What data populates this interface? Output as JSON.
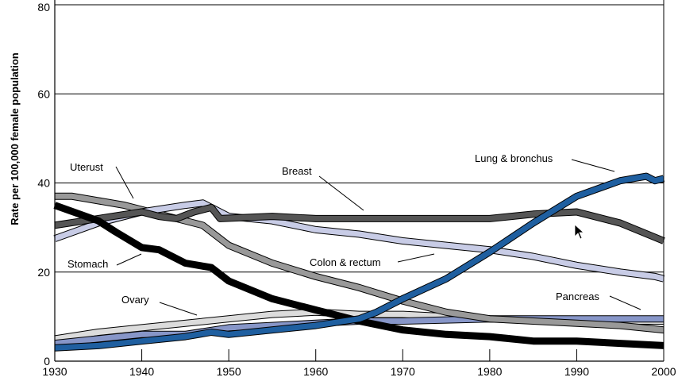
{
  "chart_data": {
    "type": "line",
    "title": "",
    "xlabel": "",
    "ylabel": "Rate per 100,000 female population",
    "xlim": [
      1930,
      2000
    ],
    "ylim": [
      0,
      80
    ],
    "xticks": [
      "1930",
      "1940",
      "1950",
      "1960",
      "1970",
      "1980",
      "1990",
      "2000"
    ],
    "yticks": [
      "0",
      "20",
      "40",
      "60",
      "80"
    ],
    "grid": "horizontal",
    "series": [
      {
        "name": "Ovary",
        "label": "Ovary",
        "color": "#dcdcdc",
        "x": [
          1930,
          1935,
          1940,
          1945,
          1950,
          1955,
          1960,
          1965,
          1970,
          1975,
          1980,
          1990,
          2000
        ],
        "values": [
          5,
          6.5,
          7.5,
          8.5,
          9.5,
          10.5,
          11,
          10.5,
          10.5,
          10,
          9.5,
          9,
          9
        ]
      },
      {
        "name": "Pancreas",
        "label": "Pancreas",
        "color": "#8796c8",
        "x": [
          1930,
          1935,
          1940,
          1945,
          1950,
          1955,
          1960,
          1965,
          1970,
          1980,
          1990,
          2000
        ],
        "values": [
          4,
          5,
          6,
          6,
          7.5,
          8,
          8.5,
          9,
          9,
          9.5,
          9.5,
          9.5
        ]
      },
      {
        "name": "Uterus",
        "label": "Uterust",
        "color": "#999999",
        "x": [
          1930,
          1932,
          1935,
          1938,
          1940,
          1945,
          1947,
          1950,
          1955,
          1960,
          1965,
          1970,
          1975,
          1980,
          1985,
          1990,
          1995,
          2000
        ],
        "values": [
          37,
          37,
          36,
          35,
          34,
          31.5,
          30.5,
          26,
          22,
          19,
          16.5,
          13.5,
          11,
          9.5,
          9,
          8.5,
          8,
          7
        ]
      },
      {
        "name": "Colon & rectum",
        "label": "Colon & rectum",
        "color": "#c8cce6",
        "x": [
          1930,
          1935,
          1940,
          1945,
          1947,
          1950,
          1955,
          1960,
          1965,
          1970,
          1975,
          1980,
          1985,
          1990,
          1995,
          1999,
          2000
        ],
        "values": [
          27.5,
          31,
          33.5,
          35,
          35.5,
          32.5,
          31.5,
          29.5,
          28.5,
          27,
          26,
          25,
          23.5,
          21.5,
          20,
          19,
          18.5
        ]
      },
      {
        "name": "Breast",
        "label": "Breast",
        "color": "#555555",
        "x": [
          1930,
          1935,
          1940,
          1942,
          1944,
          1946,
          1948,
          1949,
          1955,
          1960,
          1965,
          1970,
          1975,
          1980,
          1985,
          1990,
          1995,
          2000
        ],
        "values": [
          30.5,
          32,
          33.5,
          32.5,
          32,
          33.5,
          34.5,
          32,
          32.5,
          32,
          32,
          32,
          32,
          32,
          33,
          33.5,
          31,
          27
        ]
      },
      {
        "name": "Stomach",
        "label": "Stomach",
        "color": "#000000",
        "x": [
          1930,
          1935,
          1937,
          1940,
          1942,
          1945,
          1948,
          1950,
          1955,
          1960,
          1965,
          1970,
          1975,
          1980,
          1985,
          1990,
          1995,
          2000
        ],
        "values": [
          35,
          31.5,
          29,
          25.5,
          25,
          22,
          21,
          18,
          14,
          11.5,
          9,
          7,
          6,
          5.5,
          4.5,
          4.5,
          4,
          3.5
        ]
      },
      {
        "name": "Lung & bronchus",
        "label": "Lung & bronchus",
        "color": "#1f5fa0",
        "x": [
          1930,
          1935,
          1940,
          1945,
          1948,
          1950,
          1955,
          1960,
          1965,
          1967,
          1970,
          1975,
          1980,
          1985,
          1990,
          1995,
          1998,
          1999,
          2000
        ],
        "values": [
          3,
          3.5,
          4.5,
          5.5,
          6.5,
          6,
          7,
          8,
          9.5,
          11,
          14,
          18.5,
          24.5,
          31,
          37,
          40.5,
          41.5,
          40.5,
          41
        ]
      }
    ]
  }
}
